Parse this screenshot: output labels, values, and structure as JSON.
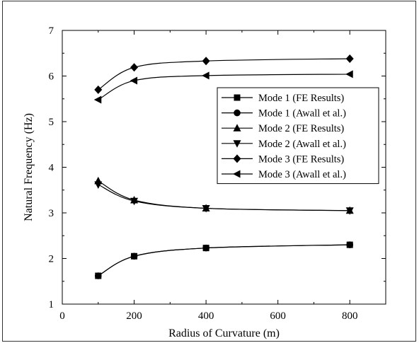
{
  "chart_data": {
    "type": "line",
    "title": "",
    "xlabel": "Radius of Curvature (m)",
    "ylabel": "Natural Frequency (Hz)",
    "xlim": [
      0,
      900
    ],
    "ylim": [
      1,
      7
    ],
    "xticks": [
      0,
      200,
      400,
      600,
      800
    ],
    "yticks": [
      1,
      2,
      3,
      4,
      5,
      6,
      7
    ],
    "grid": false,
    "legend_position": "right, upper-middle",
    "series": [
      {
        "name": "Mode 1 (FE Results)",
        "marker": "square",
        "x": [
          100,
          200,
          400,
          800
        ],
        "y": [
          1.62,
          2.05,
          2.23,
          2.3
        ]
      },
      {
        "name": "Mode 1 (Awall et al.)",
        "marker": "circle",
        "x": [
          100,
          200,
          400,
          800
        ],
        "y": [
          1.62,
          2.05,
          2.23,
          2.3
        ]
      },
      {
        "name": "Mode 2 (FE Results)",
        "marker": "triangle-up",
        "x": [
          100,
          200,
          400,
          800
        ],
        "y": [
          3.7,
          3.28,
          3.1,
          3.05
        ]
      },
      {
        "name": "Mode 2 (Awall et al.)",
        "marker": "triangle-down",
        "x": [
          100,
          200,
          400,
          800
        ],
        "y": [
          3.62,
          3.26,
          3.1,
          3.05
        ]
      },
      {
        "name": "Mode 3 (FE Results)",
        "marker": "diamond",
        "x": [
          100,
          200,
          400,
          800
        ],
        "y": [
          5.7,
          6.19,
          6.33,
          6.38
        ]
      },
      {
        "name": "Mode 3 (Awall et al.)",
        "marker": "triangle-left",
        "x": [
          100,
          200,
          400,
          800
        ],
        "y": [
          5.48,
          5.9,
          6.01,
          6.04
        ]
      }
    ],
    "colors": {
      "line": "#000000",
      "marker": "#000000",
      "background": "#ffffff"
    }
  }
}
